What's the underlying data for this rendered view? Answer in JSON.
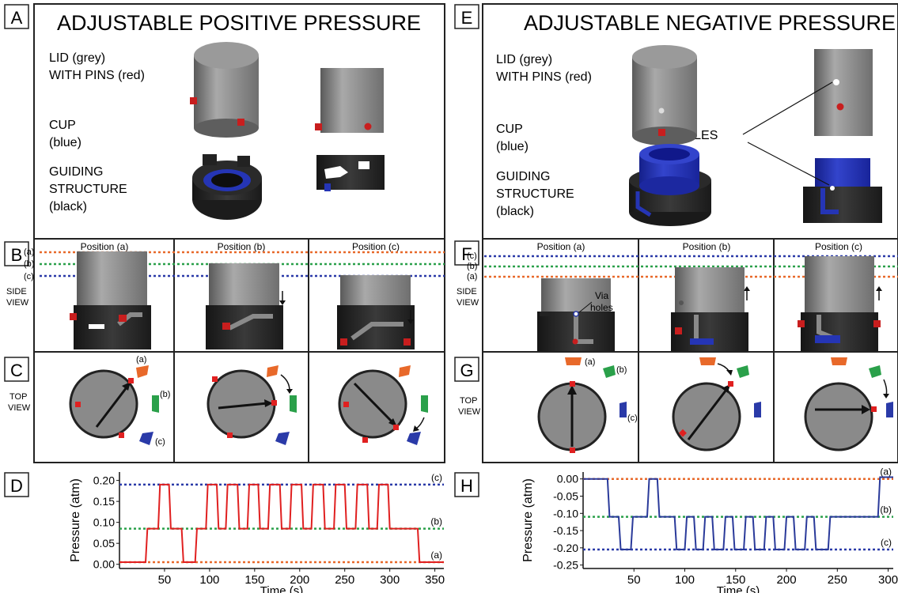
{
  "panels": {
    "A": {
      "letter": "A",
      "title": "ADJUSTABLE  POSITIVE PRESSURE"
    },
    "B": {
      "letter": "B",
      "side_label": [
        "SIDE",
        "VIEW"
      ],
      "positions": [
        "Position (a)",
        "Position (b)",
        "Position (c)"
      ]
    },
    "C": {
      "letter": "C",
      "top_label": [
        "TOP",
        "VIEW"
      ]
    },
    "D": {
      "letter": "D"
    },
    "E": {
      "letter": "E",
      "title": "ADJUSTABLE NEGATIVE PRESSURE",
      "via_label": "VIA-HOLES"
    },
    "F": {
      "letter": "F",
      "side_label": [
        "SIDE",
        "VIEW"
      ],
      "positions": [
        "Position (a)",
        "Position (b)",
        "Position (c)"
      ],
      "via_note": [
        "Via",
        "holes"
      ]
    },
    "G": {
      "letter": "G",
      "top_label": [
        "TOP",
        "VIEW"
      ]
    },
    "H": {
      "letter": "H"
    }
  },
  "labels": {
    "lid": [
      "LID (grey)",
      "WITH PINS (red)"
    ],
    "cup": [
      "CUP",
      "(blue)"
    ],
    "guide": [
      "GUIDING",
      "STRUCTURE",
      "(black)"
    ]
  },
  "level_tags": {
    "a": "(a)",
    "b": "(b)",
    "c": "(c)"
  },
  "colors": {
    "level_a": "#e8692a",
    "level_b": "#2aa04a",
    "level_c": "#2a3aa8",
    "positive_trace": "#e02020",
    "negative_trace": "#2a3a9a",
    "lid": "#8c8c8c",
    "cup": "#2535b5",
    "guide": "#2a2a2a",
    "pin": "#c81e1e"
  },
  "chart_data": [
    {
      "type": "line",
      "panel": "D",
      "xlabel": "Time (s)",
      "ylabel": "Pressure (atm)",
      "xlim": [
        0,
        360
      ],
      "ylim": [
        -0.01,
        0.22
      ],
      "xticks": [
        50,
        100,
        150,
        200,
        250,
        300,
        350
      ],
      "yticks": [
        0.0,
        0.05,
        0.1,
        0.15,
        0.2
      ],
      "ytick_labels": [
        "0.00",
        "0.05",
        "0.10",
        "0.15",
        "0.20"
      ],
      "reference_lines": [
        {
          "label": "(c)",
          "y": 0.19,
          "color": "#2a3aa8"
        },
        {
          "label": "(b)",
          "y": 0.085,
          "color": "#2aa04a"
        },
        {
          "label": "(a)",
          "y": 0.005,
          "color": "#e8692a"
        }
      ],
      "series": [
        {
          "color": "#e02020",
          "x": [
            0,
            29,
            31,
            43,
            45,
            55,
            57,
            69,
            71,
            84,
            86,
            96,
            98,
            108,
            110,
            118,
            120,
            131,
            133,
            142,
            144,
            154,
            156,
            165,
            167,
            178,
            180,
            189,
            191,
            202,
            204,
            213,
            215,
            226,
            228,
            238,
            240,
            250,
            252,
            262,
            264,
            275,
            277,
            286,
            288,
            298,
            300,
            311,
            313,
            331,
            333,
            360
          ],
          "y": [
            0.005,
            0.005,
            0.085,
            0.085,
            0.19,
            0.19,
            0.085,
            0.085,
            0.005,
            0.005,
            0.085,
            0.085,
            0.19,
            0.19,
            0.085,
            0.085,
            0.19,
            0.19,
            0.085,
            0.085,
            0.19,
            0.19,
            0.085,
            0.085,
            0.19,
            0.19,
            0.085,
            0.085,
            0.19,
            0.19,
            0.085,
            0.085,
            0.19,
            0.19,
            0.085,
            0.085,
            0.19,
            0.19,
            0.085,
            0.085,
            0.19,
            0.19,
            0.085,
            0.085,
            0.19,
            0.19,
            0.085,
            0.085,
            0.085,
            0.085,
            0.005,
            0.005
          ]
        }
      ]
    },
    {
      "type": "line",
      "panel": "H",
      "xlabel": "Time (s)",
      "ylabel": "Pressure (atm)",
      "xlim": [
        0,
        305
      ],
      "ylim": [
        -0.26,
        0.02
      ],
      "xticks": [
        50,
        100,
        150,
        200,
        250,
        300
      ],
      "yticks": [
        0.0,
        -0.05,
        -0.1,
        -0.15,
        -0.2,
        -0.25
      ],
      "ytick_labels": [
        "0.00",
        "-0.05",
        "-0.10",
        "-0.15",
        "-0.20",
        "-0.25"
      ],
      "reference_lines": [
        {
          "label": "(a)",
          "y": 0.0,
          "color": "#e8692a"
        },
        {
          "label": "(b)",
          "y": -0.11,
          "color": "#2aa04a"
        },
        {
          "label": "(c)",
          "y": -0.205,
          "color": "#2a3aa8"
        }
      ],
      "series": [
        {
          "color": "#2a3a9a",
          "x": [
            0,
            24,
            26,
            35,
            37,
            47,
            49,
            63,
            65,
            73,
            75,
            90,
            92,
            100,
            102,
            109,
            111,
            118,
            120,
            127,
            129,
            138,
            140,
            147,
            149,
            158,
            160,
            167,
            169,
            178,
            180,
            187,
            189,
            198,
            200,
            207,
            209,
            218,
            220,
            227,
            229,
            241,
            243,
            251,
            253,
            262,
            264,
            290,
            292,
            305
          ],
          "y": [
            0.0,
            0.0,
            -0.11,
            -0.11,
            -0.205,
            -0.205,
            -0.11,
            -0.11,
            0.0,
            0.0,
            -0.11,
            -0.11,
            -0.205,
            -0.205,
            -0.11,
            -0.11,
            -0.205,
            -0.205,
            -0.11,
            -0.11,
            -0.205,
            -0.205,
            -0.11,
            -0.11,
            -0.205,
            -0.205,
            -0.11,
            -0.11,
            -0.205,
            -0.205,
            -0.11,
            -0.11,
            -0.205,
            -0.205,
            -0.11,
            -0.11,
            -0.205,
            -0.205,
            -0.11,
            -0.11,
            -0.205,
            -0.205,
            -0.11,
            -0.11,
            -0.11,
            -0.11,
            -0.11,
            -0.11,
            0.005,
            0.005
          ]
        }
      ]
    }
  ]
}
